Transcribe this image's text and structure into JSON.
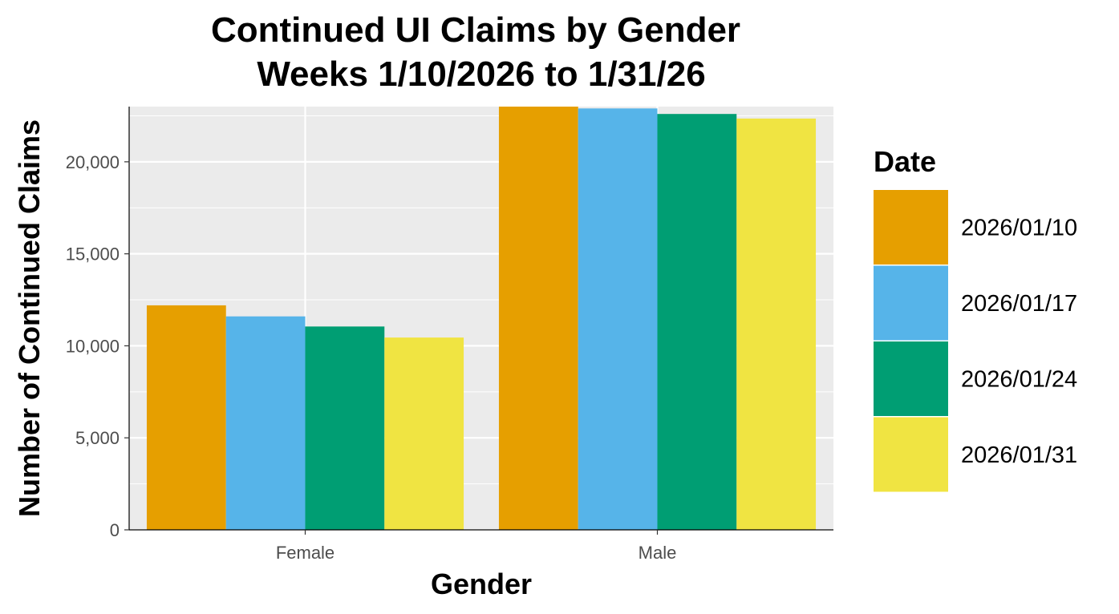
{
  "chart_data": {
    "type": "bar",
    "title_line1": "Continued UI Claims by Gender",
    "title_line2": "Weeks  1/10/2026 to 1/31/26",
    "xlabel": "Gender",
    "ylabel": "Number of Continued Claims",
    "categories": [
      "Female",
      "Male"
    ],
    "ylim": [
      0,
      23000
    ],
    "yticks": [
      0,
      5000,
      10000,
      15000,
      20000
    ],
    "ytick_labels": [
      "0",
      "5,000",
      "10,000",
      "15,000",
      "20,000"
    ],
    "grid": true,
    "legend_title": "Date",
    "legend_position": "right",
    "series": [
      {
        "name": "2026/01/10",
        "color": "#E69F00",
        "values": [
          12200,
          23000
        ]
      },
      {
        "name": "2026/01/17",
        "color": "#56B4E9",
        "values": [
          11600,
          22900
        ]
      },
      {
        "name": "2026/01/24",
        "color": "#009E73",
        "values": [
          11050,
          22600
        ]
      },
      {
        "name": "2026/01/31",
        "color": "#F0E442",
        "values": [
          10450,
          22350
        ]
      }
    ]
  }
}
